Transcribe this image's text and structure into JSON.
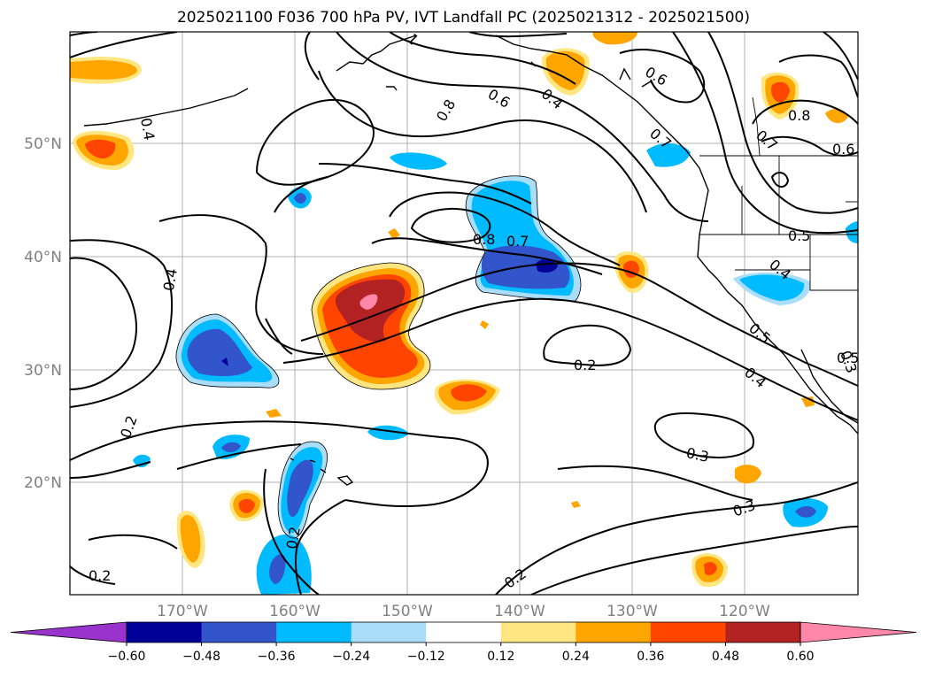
{
  "title": "2025021100 F036 700 hPa PV, IVT Landfall PC (2025021312 - 2025021500)",
  "map": {
    "lon_ticks": [
      "170°W",
      "160°W",
      "150°W",
      "140°W",
      "130°W",
      "120°W"
    ],
    "lat_ticks": [
      "50°N",
      "40°N",
      "30°N",
      "20°N"
    ],
    "contour_labels": [
      "0.2",
      "0.2",
      "0.2",
      "0.2",
      "0.2",
      "0.3",
      "0.3",
      "0.3",
      "0.4",
      "0.4",
      "0.4",
      "0.4",
      "0.4",
      "0.5",
      "0.5",
      "0.5",
      "0.6",
      "0.6",
      "0.6",
      "0.7",
      "0.7",
      "0.7",
      "0.8",
      "0.8",
      "0.8",
      "1"
    ]
  },
  "colorbar": {
    "colors": [
      "#9933cc",
      "#000099",
      "#3355cc",
      "#00bbff",
      "#aaddf8",
      "#ffffff",
      "#ffe680",
      "#ffa500",
      "#ff4500",
      "#b22222",
      "#ff88aa"
    ],
    "tick_labels": [
      "−0.60",
      "−0.48",
      "−0.36",
      "−0.24",
      "−0.12",
      "0.12",
      "0.24",
      "0.36",
      "0.48",
      "0.60"
    ]
  }
}
